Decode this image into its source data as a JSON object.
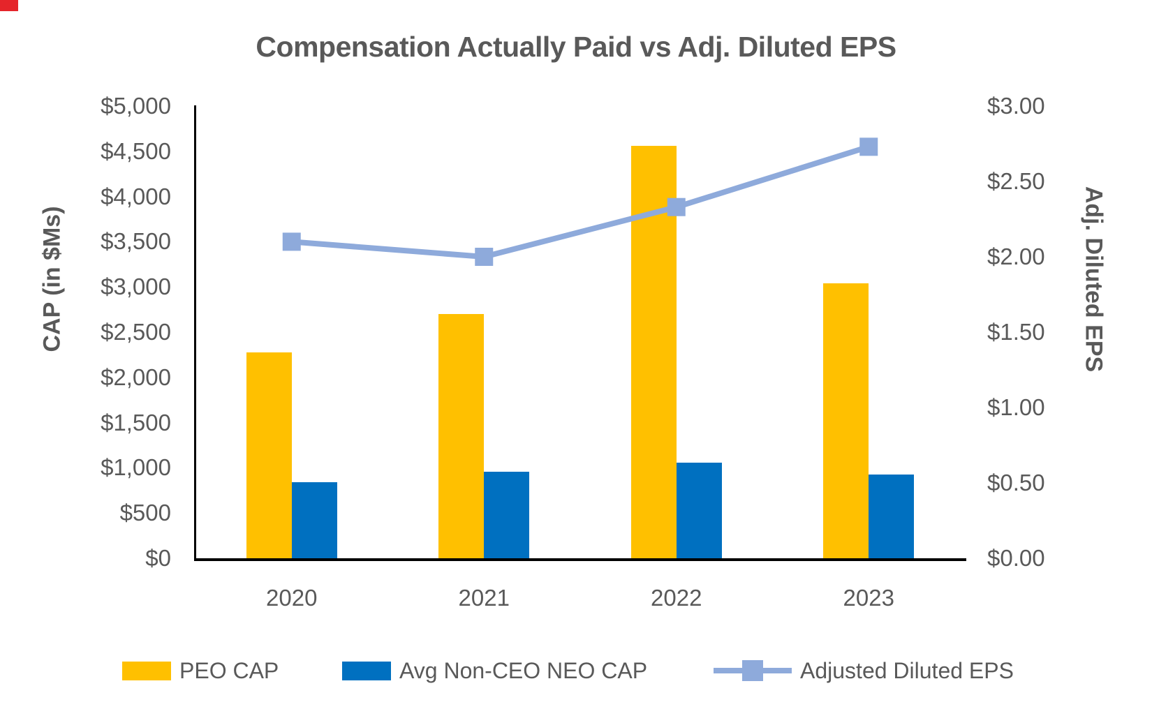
{
  "chart_data": {
    "type": "bar",
    "subtype": "grouped-bar-with-line-combo",
    "title": "Compensation Actually Paid vs Adj. Diluted EPS",
    "categories": [
      "2020",
      "2021",
      "2022",
      "2023"
    ],
    "series": [
      {
        "name": "PEO CAP",
        "type": "bar",
        "axis": "left",
        "color": "#FFC000",
        "values": [
          2280,
          2700,
          4560,
          3040
        ]
      },
      {
        "name": "Avg Non-CEO NEO CAP",
        "type": "bar",
        "axis": "left",
        "color": "#0070C0",
        "values": [
          840,
          960,
          1055,
          925
        ]
      },
      {
        "name": "Adjusted Diluted EPS",
        "type": "line",
        "axis": "right",
        "color": "#8EAADB",
        "marker": "square",
        "values": [
          2.1,
          2.0,
          2.33,
          2.73
        ]
      }
    ],
    "left_axis": {
      "label": "CAP (in $Ms)",
      "min": 0,
      "max": 5000,
      "step": 500,
      "tick_labels": [
        "$5,000",
        "$4,500",
        "$4,000",
        "$3,500",
        "$3,000",
        "$2,500",
        "$2,000",
        "$1,500",
        "$1,000",
        "$500",
        "$0"
      ]
    },
    "right_axis": {
      "label": "Adj. Diluted EPS",
      "min": 0,
      "max": 3,
      "step": 0.5,
      "tick_labels": [
        "$3.00",
        "$2.50",
        "$2.00",
        "$1.50",
        "$1.00",
        "$0.50",
        "$0.00"
      ]
    },
    "grid": false,
    "legend_position": "bottom",
    "text_color": "#595959",
    "axis_line_color": "#000000"
  }
}
